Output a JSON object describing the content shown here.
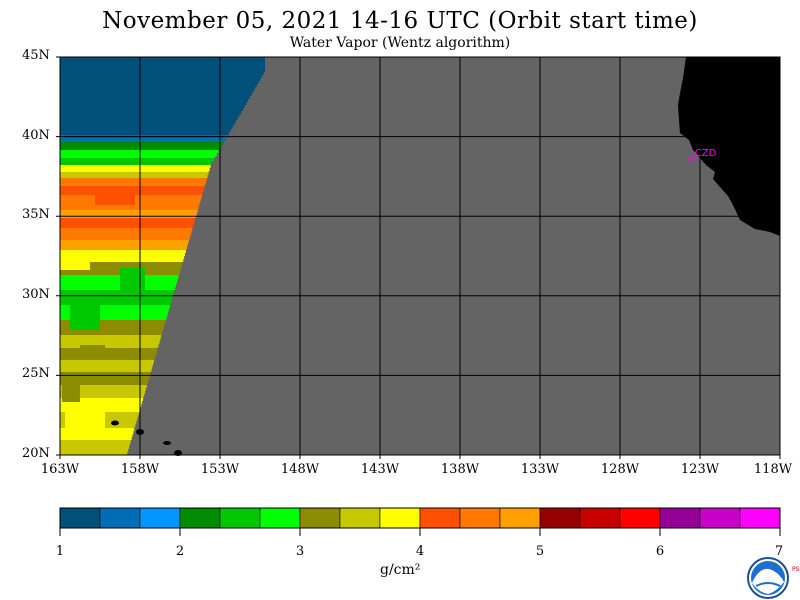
{
  "title": "November 05, 2021  14-16 UTC  (Orbit start time)",
  "subtitle": "Water Vapor (Wentz algorithm)",
  "map": {
    "lat_labels": [
      "45N",
      "40N",
      "35N",
      "30N",
      "25N",
      "20N"
    ],
    "lat_values": [
      45,
      40,
      35,
      30,
      25,
      20
    ],
    "lon_labels": [
      "163W",
      "158W",
      "153W",
      "148W",
      "143W",
      "138W",
      "133W",
      "128W",
      "123W",
      "118W"
    ],
    "lon_values": [
      -163,
      -158,
      -153,
      -148,
      -143,
      -138,
      -133,
      -128,
      -123,
      -118
    ],
    "station_label": "CZD",
    "station_lat": 38.6,
    "station_lon": -123.2,
    "colors": {
      "nodata": "#646464",
      "land": "#000000",
      "grid": "#000000",
      "station": "#ff00ff"
    }
  },
  "colorbar": {
    "tick_labels": [
      "1",
      "2",
      "3",
      "4",
      "5",
      "6",
      "7"
    ],
    "tick_values": [
      1,
      2,
      3,
      4,
      5,
      6,
      7
    ],
    "units": "g/cm²",
    "colors": [
      "#00507a",
      "#006eb4",
      "#0096ff",
      "#008c00",
      "#00c800",
      "#00ff00",
      "#8c8c00",
      "#c8c800",
      "#ffff00",
      "#ff5000",
      "#ff7800",
      "#ffa000",
      "#960000",
      "#c80000",
      "#ff0000",
      "#960096",
      "#c800c8",
      "#ff00ff"
    ]
  },
  "logo": {
    "name": "NOAA",
    "side_text": "PSL"
  }
}
